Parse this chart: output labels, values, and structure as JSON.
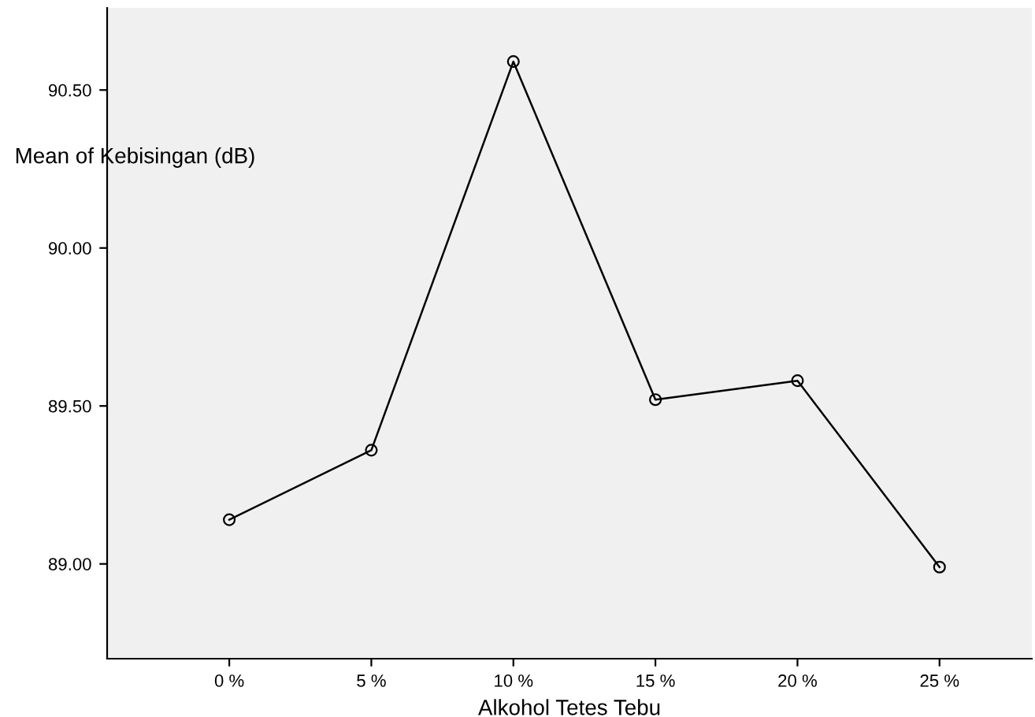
{
  "chart_data": {
    "type": "line",
    "xlabel": "Alkohol Tetes Tebu",
    "ylabel": "Mean of Kebisingan (dB)",
    "categories": [
      "0 %",
      "5 %",
      "10 %",
      "15 %",
      "20 %",
      "25 %"
    ],
    "series": [
      {
        "color": "#000000",
        "values": [
          89.14,
          89.36,
          90.59,
          89.52,
          89.58,
          88.99
        ]
      }
    ],
    "ylim": [
      88.7,
      90.76
    ],
    "yticks": [
      {
        "value": 89.0,
        "label": "89.00"
      },
      {
        "value": 89.5,
        "label": "89.50"
      },
      {
        "value": 90.0,
        "label": "90.00"
      },
      {
        "value": 90.5,
        "label": "90.50"
      }
    ],
    "grid": false,
    "marker": "circle",
    "line_style": "solid"
  }
}
